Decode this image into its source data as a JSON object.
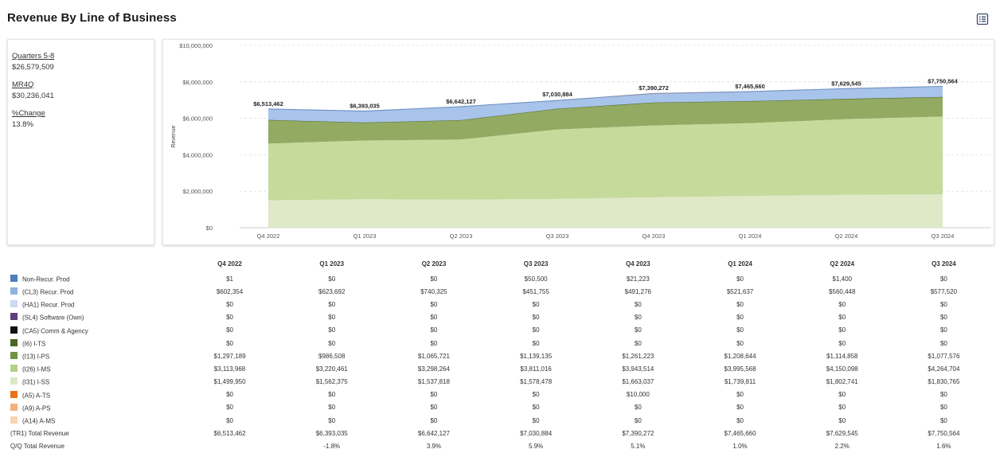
{
  "page": {
    "title": "Revenue By Line of Business"
  },
  "toolbar": {
    "table_icon": "table-view-icon"
  },
  "summary": [
    {
      "label": "Quarters 5-8",
      "value": "$26,579,509"
    },
    {
      "label": "MR4Q",
      "value": "$30,236,041"
    },
    {
      "label": "%Change",
      "value": "13.8%"
    }
  ],
  "chart_data": {
    "type": "area",
    "stacked": true,
    "title": "",
    "xlabel": "",
    "ylabel": "Revenue",
    "ylim": [
      0,
      10000000
    ],
    "yticks": [
      0,
      2000000,
      4000000,
      6000000,
      8000000,
      10000000
    ],
    "ytick_labels": [
      "$0",
      "$2,000,000",
      "$4,000,000",
      "$6,000,000",
      "$8,000,000",
      "$10,000,000"
    ],
    "categories": [
      "Q4 2022",
      "Q1 2023",
      "Q2 2023",
      "Q3 2023",
      "Q4 2023",
      "Q1 2024",
      "Q2 2024",
      "Q3 2024"
    ],
    "grid": true,
    "legend": "none",
    "series": [
      {
        "name": "(I31) I-SS",
        "color": "#dfe9c8",
        "values": [
          1499950,
          1562375,
          1537818,
          1578478,
          1663037,
          1739811,
          1802741,
          1830765
        ]
      },
      {
        "name": "(I26) I-MS",
        "color": "#c6da9c",
        "values": [
          3113968,
          3220461,
          3298264,
          3811016,
          3943514,
          3995568,
          4150098,
          4264704
        ]
      },
      {
        "name": "(I13) I-PS",
        "color": "#93aa62",
        "values": [
          1297189,
          986508,
          1065721,
          1139135,
          1261223,
          1208644,
          1114858,
          1077576
        ]
      },
      {
        "name": "(CL3) Recur. Prod",
        "color": "#a9c4ea",
        "values": [
          602354,
          623692,
          740325,
          451755,
          491276,
          521637,
          560448,
          577520
        ]
      },
      {
        "name": "(A5) A-TS",
        "color": "#e8873a",
        "values": [
          0,
          0,
          0,
          0,
          10000,
          0,
          0,
          0
        ]
      }
    ],
    "totals": [
      6513462,
      6393035,
      6642127,
      7030884,
      7390272,
      7465660,
      7629545,
      7750564
    ],
    "total_labels": [
      "$6,513,462",
      "$6,393,035",
      "$6,642,127",
      "$7,030,884",
      "$7,390,272",
      "$7,465,660",
      "$7,629,545",
      "$7,750,564"
    ]
  },
  "table": {
    "columns": [
      "Q4 2022",
      "Q1 2023",
      "Q2 2023",
      "Q3 2023",
      "Q4 2023",
      "Q1 2024",
      "Q2 2024",
      "Q3 2024"
    ],
    "rows": [
      {
        "label": "Non-Recur. Prod",
        "color": "#4f7fba",
        "values": [
          "$1",
          "$0",
          "$0",
          "$50,500",
          "$21,223",
          "$0",
          "$1,400",
          "$0"
        ]
      },
      {
        "label": "(CL3) Recur. Prod",
        "color": "#8fb1e0",
        "values": [
          "$602,354",
          "$623,692",
          "$740,325",
          "$451,755",
          "$491,276",
          "$521,637",
          "$560,448",
          "$577,520"
        ]
      },
      {
        "label": "(HA1) Recur. Prod",
        "color": "#c9daf3",
        "values": [
          "$0",
          "$0",
          "$0",
          "$0",
          "$0",
          "$0",
          "$0",
          "$0"
        ]
      },
      {
        "label": "(SL4) Software (Own)",
        "color": "#5e3f7a",
        "values": [
          "$0",
          "$0",
          "$0",
          "$0",
          "$0",
          "$0",
          "$0",
          "$0"
        ]
      },
      {
        "label": "(CA5) Comm & Agency",
        "color": "#111111",
        "values": [
          "$0",
          "$0",
          "$0",
          "$0",
          "$0",
          "$0",
          "$0",
          "$0"
        ]
      },
      {
        "label": "(I6) I-TS",
        "color": "#4a6524",
        "values": [
          "$0",
          "$0",
          "$0",
          "$0",
          "$0",
          "$0",
          "$0",
          "$0"
        ]
      },
      {
        "label": "(I13) I-PS",
        "color": "#6e9440",
        "values": [
          "$1,297,189",
          "$986,508",
          "$1,065,721",
          "$1,139,135",
          "$1,261,223",
          "$1,208,644",
          "$1,114,858",
          "$1,077,576"
        ]
      },
      {
        "label": "(I26) I-MS",
        "color": "#b5d08a",
        "values": [
          "$3,113,968",
          "$3,220,461",
          "$3,298,264",
          "$3,811,016",
          "$3,943,514",
          "$3,995,568",
          "$4,150,098",
          "$4,264,704"
        ]
      },
      {
        "label": "(I31) I-SS",
        "color": "#dbe9c3",
        "values": [
          "$1,499,950",
          "$1,562,375",
          "$1,537,818",
          "$1,578,478",
          "$1,663,037",
          "$1,739,811",
          "$1,802,741",
          "$1,830,765"
        ]
      },
      {
        "label": "(A5) A-TS",
        "color": "#e8731c",
        "values": [
          "$0",
          "$0",
          "$0",
          "$0",
          "$10,000",
          "$0",
          "$0",
          "$0"
        ]
      },
      {
        "label": "(A9) A-PS",
        "color": "#f6b07a",
        "values": [
          "$0",
          "$0",
          "$0",
          "$0",
          "$0",
          "$0",
          "$0",
          "$0"
        ]
      },
      {
        "label": "(A14) A-MS",
        "color": "#f9d4b2",
        "values": [
          "$0",
          "$0",
          "$0",
          "$0",
          "$0",
          "$0",
          "$0",
          "$0"
        ]
      }
    ],
    "total_row": {
      "label": "(TR1) Total Revenue",
      "values": [
        "$6,513,462",
        "$6,393,035",
        "$6,642,127",
        "$7,030,884",
        "$7,390,272",
        "$7,465,660",
        "$7,629,545",
        "$7,750,564"
      ]
    },
    "growth_row": {
      "label": "Q/Q Total Revenue",
      "values": [
        "",
        "-1.8%",
        "3.9%",
        "5.9%",
        "5.1%",
        "1.0%",
        "2.2%",
        "1.6%"
      ]
    }
  }
}
